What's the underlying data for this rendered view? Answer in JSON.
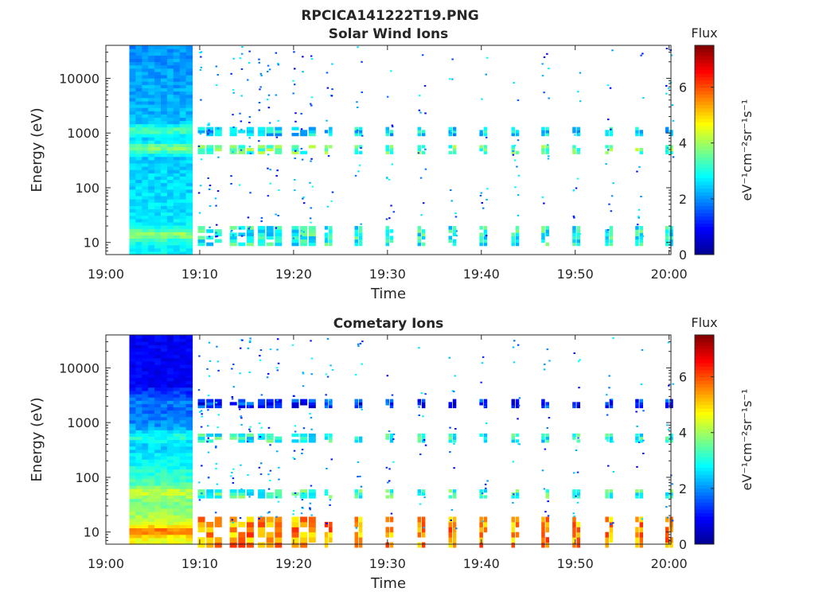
{
  "figure_title": "RPCICA141222T19.PNG",
  "colorscale": [
    "#00008f",
    "#0000ff",
    "#0080ff",
    "#00ffff",
    "#80ff80",
    "#ffff00",
    "#ff8000",
    "#ff0000",
    "#800000"
  ],
  "chart_data": [
    {
      "type": "heatmap",
      "title": "Solar Wind Ions",
      "xlabel": "Time",
      "ylabel": "Energy (eV)",
      "x_ticks": [
        "19:00",
        "19:10",
        "19:20",
        "19:30",
        "19:40",
        "19:50",
        "20:00"
      ],
      "x_tick_minutes": [
        0,
        10,
        20,
        30,
        40,
        50,
        60
      ],
      "xlim_minutes": [
        0,
        60.2
      ],
      "y_scale": "log",
      "ylim": [
        6,
        40000
      ],
      "y_ticks": [
        10,
        100,
        1000,
        10000
      ],
      "y_tick_labels": [
        "10",
        "100",
        "1000",
        "10000"
      ],
      "colorbar": {
        "label": "Flux",
        "unit": "eV⁻¹cm⁻²sr⁻¹s⁻¹",
        "ticks": [
          0,
          2,
          4,
          6
        ],
        "range": [
          0,
          7.5
        ]
      },
      "dense_period_minutes": [
        2.5,
        9.2
      ],
      "cycle_start_minutes": [
        9.8,
        13.2,
        16.2,
        19.8,
        23.3,
        26.5,
        29.8,
        33.2,
        36.5,
        39.8,
        43.2,
        46.4,
        49.7,
        53.2,
        56.4,
        59.6
      ],
      "bands_log10_energy": [
        {
          "center": 1.12,
          "flux": 3.0
        },
        {
          "center": 2.7,
          "flux": 3.5
        },
        {
          "center": 3.03,
          "flux": 2.6
        }
      ]
    },
    {
      "type": "heatmap",
      "title": "Cometary Ions",
      "xlabel": "Time",
      "ylabel": "Energy (eV)",
      "x_ticks": [
        "19:00",
        "19:10",
        "19:20",
        "19:30",
        "19:40",
        "19:50",
        "20:00"
      ],
      "x_tick_minutes": [
        0,
        10,
        20,
        30,
        40,
        50,
        60
      ],
      "xlim_minutes": [
        0,
        60.2
      ],
      "y_scale": "log",
      "ylim": [
        6,
        40000
      ],
      "y_ticks": [
        10,
        100,
        1000,
        10000
      ],
      "y_tick_labels": [
        "10",
        "100",
        "1000",
        "10000"
      ],
      "colorbar": {
        "label": "Flux",
        "unit": "eV⁻¹cm⁻²sr⁻¹s⁻¹",
        "ticks": [
          0,
          2,
          4,
          6
        ],
        "range": [
          0,
          7.5
        ]
      },
      "dense_period_minutes": [
        2.5,
        9.2
      ],
      "cycle_start_minutes": [
        9.8,
        13.2,
        16.2,
        19.8,
        23.3,
        26.5,
        29.8,
        33.2,
        36.5,
        39.8,
        43.2,
        46.4,
        49.7,
        53.2,
        56.4,
        59.6
      ],
      "bands_log10_energy": [
        {
          "center": 1.0,
          "flux": 5.5
        },
        {
          "center": 1.7,
          "flux": 3.2
        },
        {
          "center": 2.72,
          "flux": 3.0
        },
        {
          "center": 3.35,
          "flux": 1.2
        }
      ]
    }
  ]
}
